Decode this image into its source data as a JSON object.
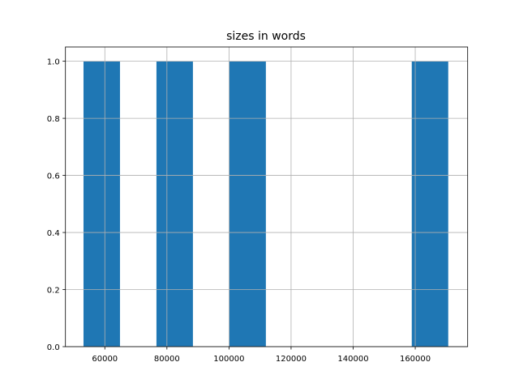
{
  "chart_data": {
    "type": "bar",
    "subtype": "histogram",
    "title": "sizes in words",
    "xlabel": "",
    "ylabel": "",
    "bin_edges": [
      53130,
      64880,
      76630,
      88380,
      100130,
      111880,
      123630,
      135380,
      147130,
      158880,
      170630
    ],
    "counts": [
      1,
      0,
      1,
      0,
      1,
      0,
      0,
      0,
      0,
      1
    ],
    "xlim": [
      47310,
      176890
    ],
    "ylim": [
      0,
      1.05
    ],
    "xticks": [
      60000,
      80000,
      100000,
      120000,
      140000,
      160000
    ],
    "xtick_labels": [
      "60000",
      "80000",
      "100000",
      "120000",
      "140000",
      "160000"
    ],
    "yticks": [
      0,
      0.2,
      0.4,
      0.6,
      0.8,
      1.0
    ],
    "ytick_labels": [
      "0.0",
      "0.2",
      "0.4",
      "0.6",
      "0.8",
      "1.0"
    ],
    "grid": true,
    "bar_color": "#1f77b4",
    "grid_color": "#b0b0b0"
  }
}
